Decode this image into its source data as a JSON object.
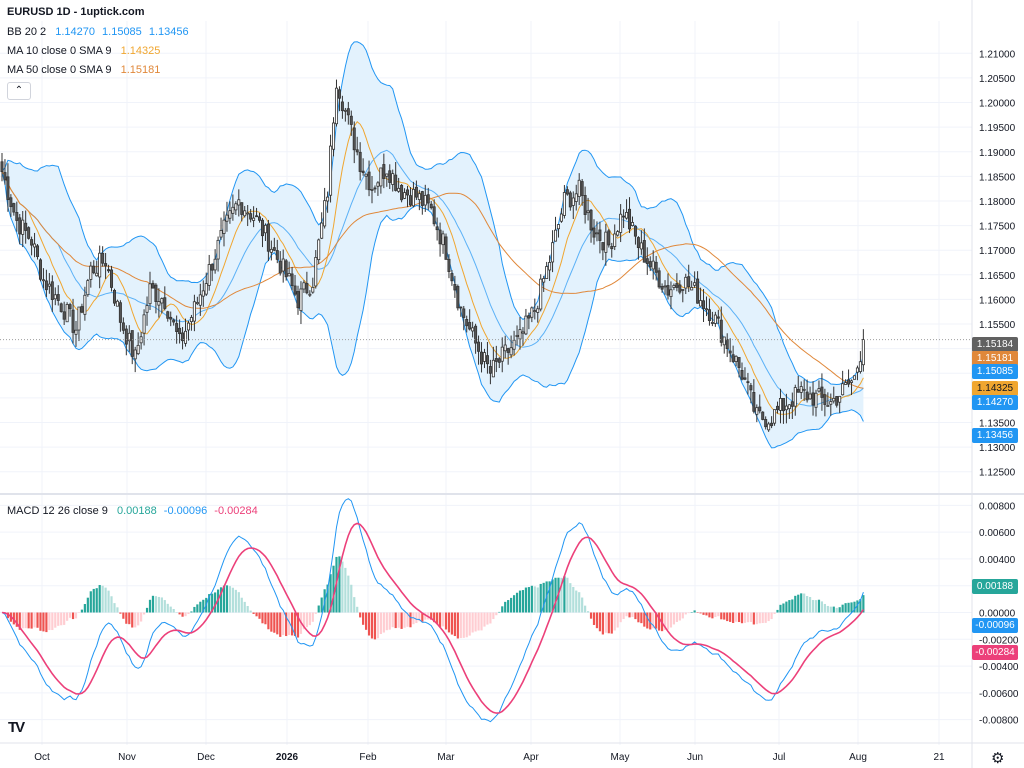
{
  "header": {
    "title": "EURUSD 1D - 1uptick.com",
    "bb": {
      "label": "BB 20 2",
      "basis": "1.14270",
      "upper": "1.15085",
      "lower": "1.13456"
    },
    "ma10": {
      "label": "MA 10 close 0 SMA 9",
      "value": "1.14325"
    },
    "ma50": {
      "label": "MA 50 close 0 SMA 9",
      "value": "1.15181"
    },
    "macd": {
      "label": "MACD 12 26 close 9",
      "hist": "0.00188",
      "macd": "-0.00096",
      "signal": "-0.00284"
    }
  },
  "colors": {
    "up": "#ffffff",
    "down": "#555555",
    "bb_line": "#2196f3",
    "bb_fill": "#e3f2fd",
    "ma10": "#f0a630",
    "ma50": "#e0883a",
    "macd_line": "#2196f3",
    "signal_line": "#ec407a",
    "hist_up": "#26a69a",
    "hist_up_light": "#b2dfdb",
    "hist_down": "#ef5350",
    "hist_down_light": "#ffcdd2"
  },
  "chart_data": [
    {
      "type": "candlestick",
      "title": "EURUSD 1D - 1uptick.com",
      "ylim": [
        1.1225,
        1.2125
      ],
      "y_ticks": [
        "1.21000",
        "1.20500",
        "1.20000",
        "1.19500",
        "1.19000",
        "1.18500",
        "1.18000",
        "1.17500",
        "1.17000",
        "1.16500",
        "1.16000",
        "1.15500",
        "1.15000",
        "1.14500",
        "1.14000",
        "1.13500",
        "1.13000",
        "1.12500"
      ],
      "x_ticks": [
        "Oct",
        "Nov",
        "Dec",
        "2026",
        "Feb",
        "Mar",
        "Apr",
        "May",
        "Jun",
        "Jul",
        "Aug",
        "21"
      ],
      "price_labels": [
        {
          "text": "1.15184",
          "color": "#616161"
        },
        {
          "text": "1.15181",
          "color": "#e0883a"
        },
        {
          "text": "1.15085",
          "color": "#2196f3"
        },
        {
          "text": "1.14325",
          "color": "#f0a630"
        },
        {
          "text": "1.14270",
          "color": "#2196f3"
        },
        {
          "text": "1.13456",
          "color": "#2196f3"
        }
      ],
      "close_anchors": [
        [
          0,
          1.186
        ],
        [
          5,
          1.176
        ],
        [
          10,
          1.172
        ],
        [
          14,
          1.164
        ],
        [
          20,
          1.159
        ],
        [
          25,
          1.154
        ],
        [
          30,
          1.166
        ],
        [
          35,
          1.168
        ],
        [
          40,
          1.156
        ],
        [
          45,
          1.148
        ],
        [
          50,
          1.162
        ],
        [
          55,
          1.16
        ],
        [
          60,
          1.151
        ],
        [
          65,
          1.158
        ],
        [
          70,
          1.166
        ],
        [
          75,
          1.174
        ],
        [
          80,
          1.18
        ],
        [
          85,
          1.177
        ],
        [
          90,
          1.172
        ],
        [
          95,
          1.166
        ],
        [
          100,
          1.16
        ],
        [
          105,
          1.164
        ],
        [
          110,
          1.182
        ],
        [
          113,
          1.205
        ],
        [
          117,
          1.196
        ],
        [
          121,
          1.188
        ],
        [
          125,
          1.183
        ],
        [
          130,
          1.187
        ],
        [
          135,
          1.182
        ],
        [
          140,
          1.181
        ],
        [
          145,
          1.178
        ],
        [
          150,
          1.17
        ],
        [
          155,
          1.158
        ],
        [
          160,
          1.151
        ],
        [
          165,
          1.145
        ],
        [
          170,
          1.149
        ],
        [
          175,
          1.152
        ],
        [
          180,
          1.158
        ],
        [
          185,
          1.168
        ],
        [
          190,
          1.18
        ],
        [
          195,
          1.182
        ],
        [
          200,
          1.174
        ],
        [
          205,
          1.171
        ],
        [
          210,
          1.178
        ],
        [
          215,
          1.171
        ],
        [
          220,
          1.166
        ],
        [
          225,
          1.162
        ],
        [
          230,
          1.164
        ],
        [
          235,
          1.161
        ],
        [
          240,
          1.157
        ],
        [
          245,
          1.151
        ],
        [
          250,
          1.145
        ],
        [
          255,
          1.136
        ],
        [
          260,
          1.136
        ],
        [
          265,
          1.139
        ],
        [
          270,
          1.141
        ],
        [
          275,
          1.14
        ],
        [
          280,
          1.139
        ],
        [
          285,
          1.142
        ],
        [
          288,
          1.144
        ],
        [
          291,
          1.1518
        ]
      ],
      "x_tick_positions": [
        "Oct",
        "Nov",
        "Dec",
        "2026",
        "Feb",
        "Mar",
        "Apr",
        "May",
        "Jun",
        "Jul",
        "Aug",
        "21"
      ]
    },
    {
      "type": "macd",
      "title": "MACD 12 26 close 9",
      "ylim": [
        -0.0084,
        0.0084
      ],
      "y_ticks": [
        "0.00800",
        "0.00600",
        "0.00400",
        "0.00200",
        "0.00000",
        "-0.00200",
        "-0.00400",
        "-0.00600",
        "-0.00800"
      ],
      "value_labels": [
        {
          "text": "0.00188",
          "color": "#26a69a"
        },
        {
          "text": "-0.00096",
          "color": "#2196f3"
        },
        {
          "text": "-0.00284",
          "color": "#ec407a"
        }
      ]
    }
  ]
}
